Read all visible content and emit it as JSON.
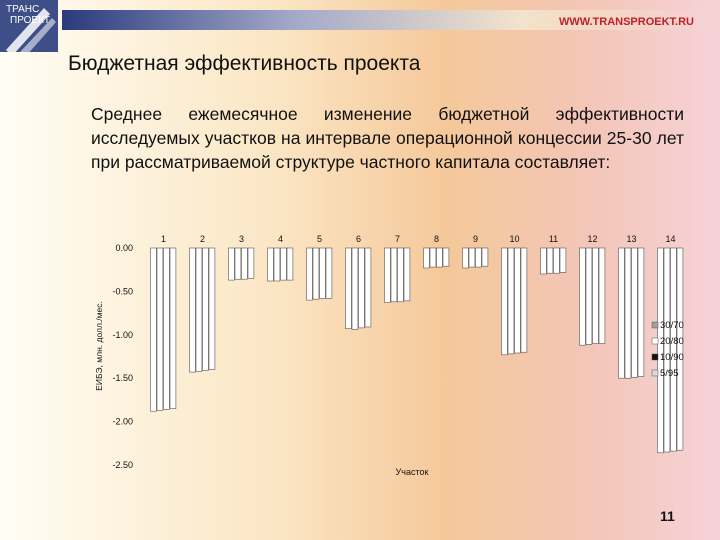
{
  "logo": {
    "line1": "ТРАНС",
    "line2": "ПРОЕКТ"
  },
  "header": {
    "website": "WWW.TRANSPROEKT.RU"
  },
  "slide": {
    "title": "Бюджетная эффективность проекта",
    "paragraph": "Среднее ежемесячное изменение бюджетной эффективности исследуемых участков на интервале операционной концессии 25-30 лет при рассматриваемой структуре частного капитала составляет:",
    "page_number": "11"
  },
  "colors": {
    "logo_bg": "#3d4f86",
    "accent_red": "#c0202a",
    "bar_fill": "#ffffff",
    "bar_edge": "#555555"
  },
  "chart_data": {
    "type": "bar",
    "categories": [
      "1",
      "2",
      "3",
      "4",
      "5",
      "6",
      "7",
      "8",
      "9",
      "10",
      "11",
      "12",
      "13",
      "14"
    ],
    "xlabel": "Участок",
    "ylabel": "ЕИБЭ, млн. долл./мес.",
    "ylim": [
      -2.5,
      0
    ],
    "yticks": [
      0,
      -0.5,
      -1.0,
      -1.5,
      -2.0,
      -2.5
    ],
    "ytick_labels": [
      "0.00",
      "-0.50",
      "-1.00",
      "-1.50",
      "-2.00",
      "-2.50"
    ],
    "legend_position": "right",
    "series": [
      {
        "name": "30/70",
        "marker_color": "#a0a0a0",
        "values": [
          -1.88,
          -1.43,
          -0.37,
          -0.38,
          -0.6,
          -0.93,
          -0.63,
          -0.23,
          -0.23,
          -1.23,
          -0.3,
          -1.12,
          -1.5,
          -2.36
        ]
      },
      {
        "name": "20/80",
        "marker_color": "#ffffff",
        "values": [
          -1.87,
          -1.42,
          -0.36,
          -0.38,
          -0.59,
          -0.94,
          -0.62,
          -0.22,
          -0.22,
          -1.22,
          -0.29,
          -1.11,
          -1.5,
          -2.35
        ]
      },
      {
        "name": "10/90",
        "marker_color": "#111111",
        "values": [
          -1.86,
          -1.41,
          -0.36,
          -0.37,
          -0.58,
          -0.92,
          -0.62,
          -0.22,
          -0.22,
          -1.21,
          -0.29,
          -1.1,
          -1.49,
          -2.34
        ]
      },
      {
        "name": "5/95",
        "marker_color": "#d8d8d8",
        "values": [
          -1.85,
          -1.4,
          -0.35,
          -0.37,
          -0.58,
          -0.91,
          -0.61,
          -0.21,
          -0.21,
          -1.2,
          -0.28,
          -1.1,
          -1.48,
          -2.33
        ]
      }
    ]
  }
}
